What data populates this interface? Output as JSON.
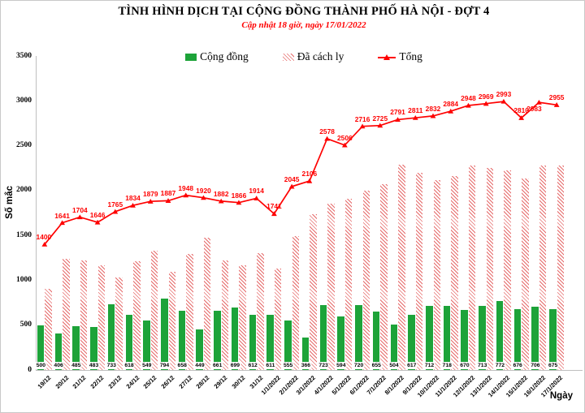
{
  "header": {
    "title": "TÌNH HÌNH DỊCH TẠI CỘNG ĐỒNG THÀNH PHỐ HÀ NỘI - ĐỢT 4",
    "subtitle": "Cập nhật 18 giờ, ngày 17/01/2022"
  },
  "axes": {
    "y_label": "Số mắc",
    "x_label": "Ngày",
    "y_ticks": [
      0,
      500,
      1000,
      1500,
      2000,
      2500,
      3000,
      3500
    ]
  },
  "legend": {
    "items": [
      {
        "label": "Cộng đồng"
      },
      {
        "label": "Đã cách ly"
      },
      {
        "label": "Tổng"
      }
    ]
  },
  "colors": {
    "community_green": "#1da339",
    "quarantine_hatch_red": "#e66a6a",
    "total_line_red": "#fe0000",
    "axis_gray": "#bfbfbf",
    "subtitle_red": "#fe0000"
  },
  "chart_data": {
    "type": "bar",
    "title": "TÌNH HÌNH DỊCH TẠI CỘNG ĐỒNG THÀNH PHỐ HÀ NỘI - ĐỢT 4",
    "subtitle": "Cập nhật 18 giờ, ngày 17/01/2022",
    "xlabel": "Ngày",
    "ylabel": "Số mắc",
    "ylim": [
      0,
      3500
    ],
    "grid": false,
    "legend_position": "top",
    "categories": [
      "19/12",
      "20/12",
      "21/12",
      "22/12",
      "23/12",
      "24/12",
      "25/12",
      "26/12",
      "27/12",
      "28/12",
      "29/12",
      "30/12",
      "31/12",
      "1/1/2022",
      "2/1/2022",
      "3/1/2022",
      "4/1/2022",
      "5/1/2022",
      "6/1/2022",
      "7/1/2022",
      "8/1/2022",
      "9/1/2022",
      "10/1/2022",
      "11/1/2022",
      "12/1/2022",
      "13/1/2022",
      "14/1/2022",
      "15/1/2022",
      "16/1/2022",
      "17/1/2022"
    ],
    "series": [
      {
        "name": "Cộng đồng",
        "type": "bar",
        "values": [
          500,
          406,
          485,
          483,
          733,
          618,
          549,
          794,
          658,
          449,
          661,
          699,
          612,
          611,
          555,
          366,
          723,
          594,
          720,
          655,
          504,
          617,
          712,
          718,
          670,
          713,
          772,
          676,
          706,
          675
        ]
      },
      {
        "name": "Đã cách ly",
        "type": "bar",
        "values": [
          900,
          1235,
          1219,
          1163,
          1032,
          1216,
          1330,
          1093,
          1290,
          1471,
          1221,
          1167,
          1302,
          1130,
          1490,
          1740,
          1855,
          1912,
          1996,
          2070,
          2287,
          2194,
          2120,
          2166,
          2278,
          2256,
          2221,
          2134,
          2277,
          2280
        ]
      },
      {
        "name": "Tổng",
        "type": "line",
        "values": [
          1400,
          1641,
          1704,
          1646,
          1765,
          1834,
          1879,
          1887,
          1948,
          1920,
          1882,
          1866,
          1914,
          1741,
          2045,
          2106,
          2578,
          2506,
          2716,
          2725,
          2791,
          2811,
          2832,
          2884,
          2948,
          2969,
          2993,
          2810,
          2983,
          2955
        ]
      }
    ]
  }
}
